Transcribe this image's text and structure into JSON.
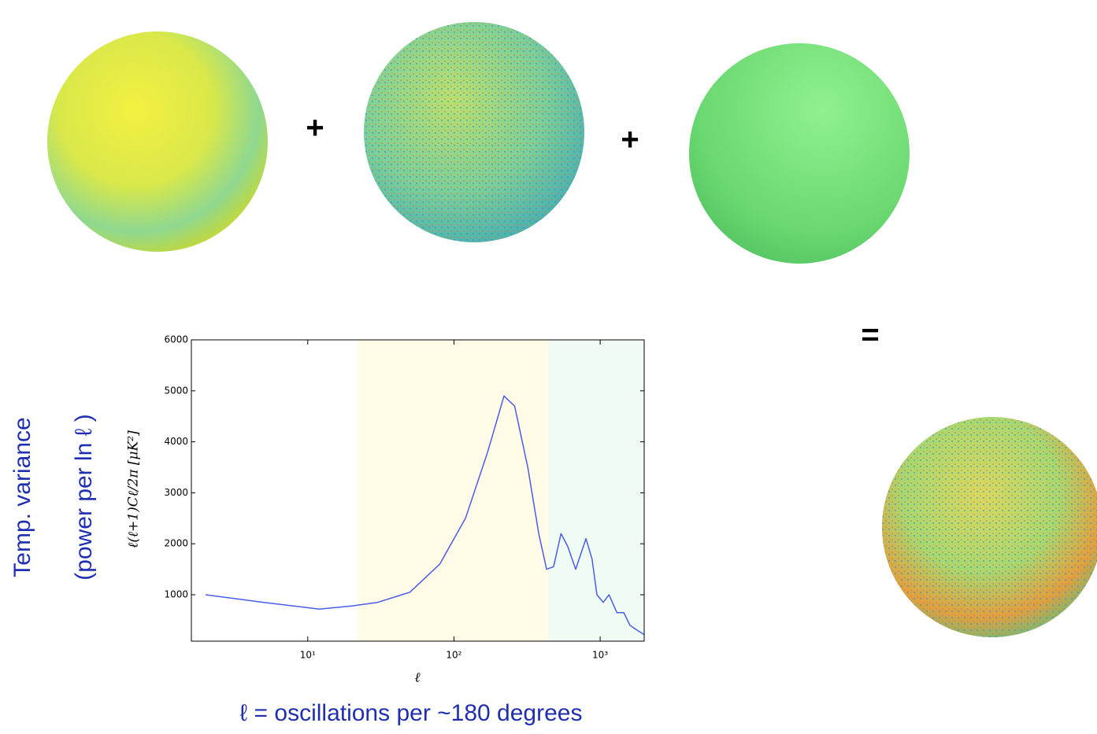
{
  "slide": {
    "operators": [
      "+",
      "+",
      "="
    ],
    "side_labels": [
      "Temp. variance",
      "(power per ln ℓ )"
    ],
    "caption": "ℓ = oscillations per ~180 degrees"
  },
  "chart_data": {
    "type": "line",
    "x_label": "ℓ",
    "y_label": "ℓ(ℓ+1)Cℓ/2π [μK²]",
    "x": [
      2,
      5,
      12,
      20,
      30,
      50,
      80,
      120,
      170,
      220,
      260,
      320,
      380,
      430,
      480,
      540,
      600,
      680,
      800,
      880,
      950,
      1050,
      1150,
      1300,
      1450,
      1600,
      1800,
      2000
    ],
    "series": [
      {
        "color": "#4a5de8",
        "values": [
          1000,
          850,
          720,
          780,
          850,
          1050,
          1600,
          2500,
          3800,
          4900,
          4700,
          3500,
          2200,
          1500,
          1550,
          2200,
          1950,
          1500,
          2100,
          1700,
          1000,
          850,
          1000,
          650,
          650,
          400,
          300,
          220
        ]
      }
    ],
    "xscale": "log",
    "xlim": [
      1.6,
      2000
    ],
    "ylim": [
      90,
      6000
    ],
    "xticks": [
      {
        "value": 10,
        "label": "10¹"
      },
      {
        "value": 100,
        "label": "10²"
      },
      {
        "value": 1000,
        "label": "10³"
      }
    ],
    "yticks": [
      1000,
      2000,
      3000,
      4000,
      5000,
      6000
    ],
    "shaded_regions": [
      {
        "xlim": [
          22,
          440
        ],
        "color": "#fffbe6"
      },
      {
        "xlim": [
          440,
          2000
        ],
        "color": "#f0fbf3"
      }
    ]
  }
}
